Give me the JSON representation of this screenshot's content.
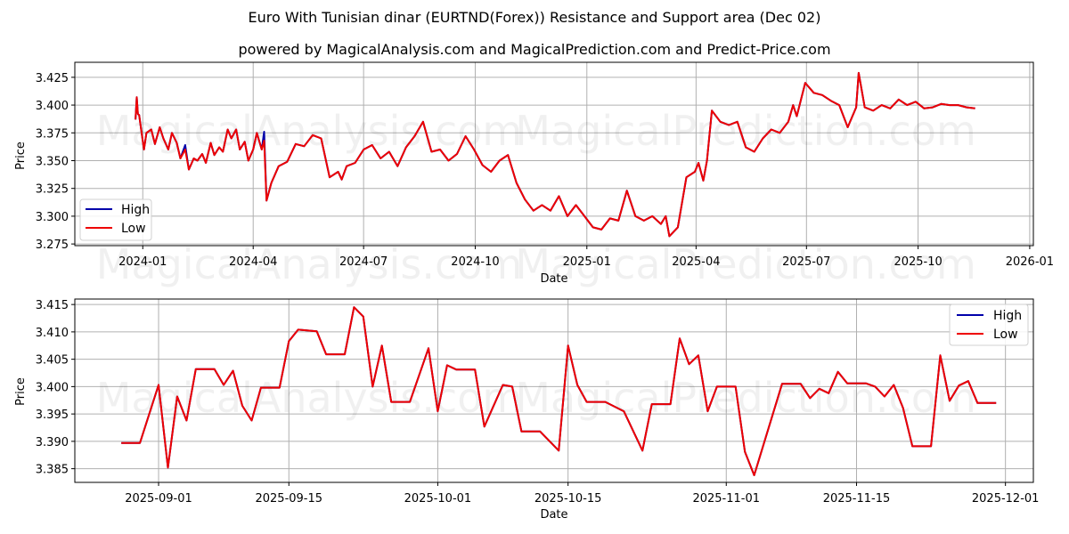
{
  "header": {
    "title": "Euro With Tunisian dinar (EURTND(Forex)) Resistance and Support area (Dec 02)",
    "subtitle": "powered by MagicalAnalysis.com and MagicalPrediction.com and Predict-Price.com"
  },
  "watermarks": [
    "MagicalAnalysis.com",
    "MagicalPrediction.com"
  ],
  "colors": {
    "high": "#0000aa",
    "low": "#ee0000",
    "grid": "#b0b0b0",
    "axis": "#000000"
  },
  "chart_data": [
    {
      "type": "line",
      "title": "",
      "xlabel": "Date",
      "ylabel": "Price",
      "ylim": [
        3.2735,
        3.4385
      ],
      "xlim": [
        "2023-11-06",
        "2026-01-04"
      ],
      "grid": true,
      "legend_position": "lower left",
      "legend": [
        "High",
        "Low"
      ],
      "x_ticks": [
        "2024-01",
        "2024-04",
        "2024-07",
        "2024-10",
        "2025-01",
        "2025-04",
        "2025-07",
        "2025-10",
        "2026-01"
      ],
      "x_tick_dates": [
        "2024-01-01",
        "2024-04-01",
        "2024-07-01",
        "2024-10-01",
        "2025-01-01",
        "2025-04-01",
        "2025-07-01",
        "2025-10-01",
        "2026-01-01"
      ],
      "y_ticks": [
        "3.275",
        "3.300",
        "3.325",
        "3.350",
        "3.375",
        "3.400",
        "3.425"
      ],
      "x": [
        "2023-12-26",
        "2023-12-27",
        "2023-12-28",
        "2023-12-29",
        "2024-01-02",
        "2024-01-04",
        "2024-01-08",
        "2024-01-11",
        "2024-01-15",
        "2024-01-18",
        "2024-01-22",
        "2024-01-25",
        "2024-01-29",
        "2024-02-01",
        "2024-02-05",
        "2024-02-08",
        "2024-02-12",
        "2024-02-15",
        "2024-02-19",
        "2024-02-22",
        "2024-02-26",
        "2024-02-29",
        "2024-03-04",
        "2024-03-07",
        "2024-03-11",
        "2024-03-14",
        "2024-03-18",
        "2024-03-21",
        "2024-03-25",
        "2024-03-28",
        "2024-04-01",
        "2024-04-04",
        "2024-04-08",
        "2024-04-10",
        "2024-04-12",
        "2024-04-16",
        "2024-04-22",
        "2024-04-29",
        "2024-05-06",
        "2024-05-13",
        "2024-05-20",
        "2024-05-27",
        "2024-06-03",
        "2024-06-10",
        "2024-06-13",
        "2024-06-17",
        "2024-06-24",
        "2024-07-01",
        "2024-07-08",
        "2024-07-15",
        "2024-07-22",
        "2024-07-29",
        "2024-08-05",
        "2024-08-12",
        "2024-08-19",
        "2024-08-26",
        "2024-09-02",
        "2024-09-09",
        "2024-09-16",
        "2024-09-23",
        "2024-09-30",
        "2024-10-07",
        "2024-10-14",
        "2024-10-21",
        "2024-10-28",
        "2024-11-04",
        "2024-11-11",
        "2024-11-18",
        "2024-11-25",
        "2024-12-02",
        "2024-12-09",
        "2024-12-16",
        "2024-12-23",
        "2024-12-30",
        "2025-01-06",
        "2025-01-13",
        "2025-01-20",
        "2025-01-27",
        "2025-02-03",
        "2025-02-10",
        "2025-02-17",
        "2025-02-24",
        "2025-03-03",
        "2025-03-07",
        "2025-03-10",
        "2025-03-17",
        "2025-03-24",
        "2025-03-31",
        "2025-04-03",
        "2025-04-07",
        "2025-04-10",
        "2025-04-14",
        "2025-04-21",
        "2025-04-28",
        "2025-05-05",
        "2025-05-12",
        "2025-05-19",
        "2025-05-26",
        "2025-06-02",
        "2025-06-09",
        "2025-06-16",
        "2025-06-20",
        "2025-06-23",
        "2025-06-30",
        "2025-07-07",
        "2025-07-14",
        "2025-07-21",
        "2025-07-28",
        "2025-08-04",
        "2025-08-11",
        "2025-08-13",
        "2025-08-18",
        "2025-08-25",
        "2025-09-01",
        "2025-09-08",
        "2025-09-15",
        "2025-09-22",
        "2025-09-29",
        "2025-10-06",
        "2025-10-13",
        "2025-10-20",
        "2025-10-27",
        "2025-11-03",
        "2025-11-10",
        "2025-11-17",
        "2025-11-24",
        "2025-11-28"
      ],
      "series": [
        {
          "name": "High",
          "color": "#0000aa",
          "values": [
            3.387,
            3.407,
            3.392,
            3.391,
            3.36,
            3.375,
            3.378,
            3.365,
            3.38,
            3.37,
            3.36,
            3.375,
            3.366,
            3.352,
            3.364,
            3.342,
            3.352,
            3.35,
            3.356,
            3.348,
            3.366,
            3.355,
            3.362,
            3.358,
            3.378,
            3.37,
            3.378,
            3.36,
            3.367,
            3.35,
            3.36,
            3.375,
            3.36,
            3.376,
            3.314,
            3.33,
            3.345,
            3.349,
            3.365,
            3.363,
            3.373,
            3.37,
            3.335,
            3.34,
            3.333,
            3.345,
            3.348,
            3.36,
            3.364,
            3.352,
            3.358,
            3.345,
            3.362,
            3.372,
            3.385,
            3.358,
            3.36,
            3.35,
            3.356,
            3.372,
            3.36,
            3.346,
            3.34,
            3.35,
            3.355,
            3.33,
            3.315,
            3.305,
            3.31,
            3.305,
            3.318,
            3.3,
            3.31,
            3.3,
            3.29,
            3.288,
            3.298,
            3.296,
            3.323,
            3.3,
            3.296,
            3.3,
            3.293,
            3.3,
            3.282,
            3.29,
            3.335,
            3.34,
            3.348,
            3.332,
            3.35,
            3.395,
            3.385,
            3.382,
            3.385,
            3.362,
            3.358,
            3.37,
            3.378,
            3.375,
            3.385,
            3.4,
            3.39,
            3.42,
            3.411,
            3.409,
            3.404,
            3.4,
            3.38,
            3.398,
            3.429,
            3.398,
            3.395,
            3.4,
            3.397,
            3.405,
            3.4,
            3.403,
            3.397,
            3.398,
            3.401,
            3.4,
            3.4,
            3.398,
            3.397
          ]
        },
        {
          "name": "Low",
          "color": "#ee0000",
          "values": [
            3.387,
            3.407,
            3.392,
            3.391,
            3.36,
            3.375,
            3.378,
            3.365,
            3.38,
            3.37,
            3.36,
            3.375,
            3.366,
            3.352,
            3.36,
            3.342,
            3.352,
            3.35,
            3.356,
            3.348,
            3.366,
            3.355,
            3.362,
            3.358,
            3.378,
            3.37,
            3.378,
            3.36,
            3.367,
            3.35,
            3.36,
            3.375,
            3.36,
            3.368,
            3.314,
            3.33,
            3.345,
            3.349,
            3.365,
            3.363,
            3.373,
            3.37,
            3.335,
            3.34,
            3.333,
            3.345,
            3.348,
            3.36,
            3.364,
            3.352,
            3.358,
            3.345,
            3.362,
            3.372,
            3.385,
            3.358,
            3.36,
            3.35,
            3.356,
            3.372,
            3.36,
            3.346,
            3.34,
            3.35,
            3.355,
            3.33,
            3.315,
            3.305,
            3.31,
            3.305,
            3.318,
            3.3,
            3.31,
            3.3,
            3.29,
            3.288,
            3.298,
            3.296,
            3.323,
            3.3,
            3.296,
            3.3,
            3.293,
            3.3,
            3.282,
            3.29,
            3.335,
            3.34,
            3.348,
            3.332,
            3.35,
            3.395,
            3.385,
            3.382,
            3.385,
            3.362,
            3.358,
            3.37,
            3.378,
            3.375,
            3.385,
            3.4,
            3.39,
            3.42,
            3.411,
            3.409,
            3.404,
            3.4,
            3.38,
            3.398,
            3.429,
            3.398,
            3.395,
            3.4,
            3.397,
            3.405,
            3.4,
            3.403,
            3.397,
            3.398,
            3.401,
            3.4,
            3.4,
            3.398,
            3.397
          ]
        }
      ]
    },
    {
      "type": "line",
      "title": "",
      "xlabel": "Date",
      "ylabel": "Price",
      "ylim": [
        3.3825,
        3.416
      ],
      "xlim": [
        "2025-08-23",
        "2025-12-04"
      ],
      "grid": true,
      "legend_position": "upper right",
      "legend": [
        "High",
        "Low"
      ],
      "x_ticks": [
        "2025-09-01",
        "2025-09-15",
        "2025-10-01",
        "2025-10-15",
        "2025-11-01",
        "2025-11-15",
        "2025-12-01"
      ],
      "y_ticks": [
        "3.385",
        "3.390",
        "3.395",
        "3.400",
        "3.405",
        "3.410",
        "3.415"
      ],
      "x": [
        "2025-08-28",
        "2025-08-30",
        "2025-09-01",
        "2025-09-02",
        "2025-09-03",
        "2025-09-04",
        "2025-09-05",
        "2025-09-07",
        "2025-09-08",
        "2025-09-09",
        "2025-09-10",
        "2025-09-11",
        "2025-09-12",
        "2025-09-14",
        "2025-09-15",
        "2025-09-16",
        "2025-09-18",
        "2025-09-19",
        "2025-09-21",
        "2025-09-22",
        "2025-09-23",
        "2025-09-24",
        "2025-09-25",
        "2025-09-26",
        "2025-09-28",
        "2025-09-30",
        "2025-10-01",
        "2025-10-02",
        "2025-10-03",
        "2025-10-05",
        "2025-10-06",
        "2025-10-08",
        "2025-10-09",
        "2025-10-10",
        "2025-10-12",
        "2025-10-14",
        "2025-10-15",
        "2025-10-16",
        "2025-10-17",
        "2025-10-19",
        "2025-10-21",
        "2025-10-23",
        "2025-10-24",
        "2025-10-26",
        "2025-10-27",
        "2025-10-28",
        "2025-10-29",
        "2025-10-30",
        "2025-10-31",
        "2025-11-02",
        "2025-11-03",
        "2025-11-04",
        "2025-11-07",
        "2025-11-09",
        "2025-11-10",
        "2025-11-11",
        "2025-11-12",
        "2025-11-13",
        "2025-11-14",
        "2025-11-16",
        "2025-11-17",
        "2025-11-18",
        "2025-11-19",
        "2025-11-20",
        "2025-11-21",
        "2025-11-23",
        "2025-11-24",
        "2025-11-25",
        "2025-11-26",
        "2025-11-27",
        "2025-11-28",
        "2025-11-30"
      ],
      "series": [
        {
          "name": "High",
          "color": "#0000aa",
          "values": [
            3.3897,
            3.3897,
            3.4003,
            3.3852,
            3.3982,
            3.3938,
            3.4032,
            3.4032,
            3.4003,
            3.4029,
            3.3965,
            3.3938,
            3.3998,
            3.3998,
            3.4083,
            3.4104,
            3.4101,
            3.4059,
            3.4059,
            3.4145,
            3.4128,
            3.4,
            3.4075,
            3.3972,
            3.3972,
            3.407,
            3.3955,
            3.4039,
            3.4031,
            3.4031,
            3.3927,
            3.4003,
            3.4,
            3.3918,
            3.3918,
            3.3883,
            3.4075,
            3.4003,
            3.3972,
            3.3972,
            3.3955,
            3.3883,
            3.3968,
            3.3968,
            3.4088,
            3.4041,
            3.4057,
            3.3955,
            3.4,
            3.4,
            3.3881,
            3.3838,
            3.4005,
            3.4005,
            3.3979,
            3.3996,
            3.3988,
            3.4027,
            3.4006,
            3.4006,
            3.4,
            3.3982,
            3.4003,
            3.3961,
            3.3891,
            3.3891,
            3.4057,
            3.3974,
            3.4002,
            3.401,
            3.397,
            3.397
          ]
        },
        {
          "name": "Low",
          "color": "#ee0000",
          "values": [
            3.3897,
            3.3897,
            3.4003,
            3.3852,
            3.3982,
            3.3938,
            3.4032,
            3.4032,
            3.4003,
            3.4029,
            3.3965,
            3.3938,
            3.3998,
            3.3998,
            3.4083,
            3.4104,
            3.4101,
            3.4059,
            3.4059,
            3.4145,
            3.4128,
            3.4,
            3.4075,
            3.3972,
            3.3972,
            3.407,
            3.3955,
            3.4039,
            3.4031,
            3.4031,
            3.3927,
            3.4003,
            3.4,
            3.3918,
            3.3918,
            3.3883,
            3.4075,
            3.4003,
            3.3972,
            3.3972,
            3.3955,
            3.3883,
            3.3968,
            3.3968,
            3.4088,
            3.4041,
            3.4057,
            3.3955,
            3.4,
            3.4,
            3.3881,
            3.3838,
            3.4005,
            3.4005,
            3.3979,
            3.3996,
            3.3988,
            3.4027,
            3.4006,
            3.4006,
            3.4,
            3.3982,
            3.4003,
            3.3961,
            3.3891,
            3.3891,
            3.4057,
            3.3974,
            3.4002,
            3.401,
            3.397,
            3.397
          ]
        }
      ]
    }
  ]
}
